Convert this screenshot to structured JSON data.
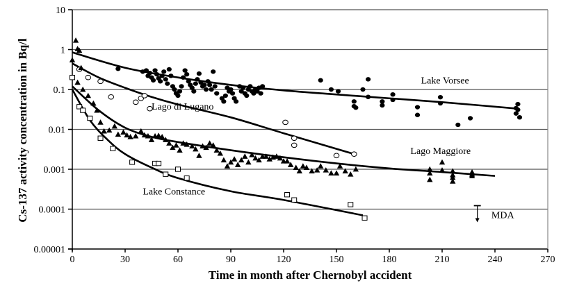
{
  "chart_data": {
    "type": "scatter",
    "title": "",
    "xlabel": "Time in month after Chernobyl accident",
    "ylabel": "Cs-137 activity concentration in Bq/l",
    "xlim": [
      0,
      270
    ],
    "ylim": [
      1e-05,
      10
    ],
    "yscale": "log",
    "grid": "horizontal",
    "x_ticks": [
      "0",
      "30",
      "60",
      "90",
      "120",
      "150",
      "180",
      "210",
      "240",
      "270"
    ],
    "y_ticks": [
      "10",
      "1",
      "0.1",
      "0.01",
      "0.001",
      "0.0001",
      "0.00001"
    ],
    "legend": "none (series labelled inline)",
    "annotations": [
      {
        "text": "Lake Vorsee",
        "x": 198,
        "y": 0.14
      },
      {
        "text": "Lago di Lugano",
        "x": 45,
        "y": 0.031
      },
      {
        "text": "Lago Maggiore",
        "x": 192,
        "y": 0.0024
      },
      {
        "text": "Lake Constance",
        "x": 40,
        "y": 0.00023
      },
      {
        "text": "MDA",
        "x": 238,
        "y": 6e-05
      }
    ],
    "mda_marker": {
      "x": 230,
      "y": 0.0001
    },
    "series": [
      {
        "name": "Lake Vorsee",
        "marker": "filled-circle",
        "points": [
          [
            26,
            0.33
          ],
          [
            40,
            0.28
          ],
          [
            42,
            0.3
          ],
          [
            43,
            0.22
          ],
          [
            44,
            0.26
          ],
          [
            45,
            0.2
          ],
          [
            46,
            0.17
          ],
          [
            47,
            0.3
          ],
          [
            48,
            0.24
          ],
          [
            49,
            0.19
          ],
          [
            50,
            0.16
          ],
          [
            51,
            0.22
          ],
          [
            52,
            0.28
          ],
          [
            53,
            0.18
          ],
          [
            54,
            0.14
          ],
          [
            55,
            0.32
          ],
          [
            56,
            0.22
          ],
          [
            57,
            0.12
          ],
          [
            58,
            0.1
          ],
          [
            59,
            0.08
          ],
          [
            60,
            0.07
          ],
          [
            61,
            0.09
          ],
          [
            62,
            0.12
          ],
          [
            63,
            0.2
          ],
          [
            64,
            0.3
          ],
          [
            65,
            0.24
          ],
          [
            66,
            0.16
          ],
          [
            67,
            0.13
          ],
          [
            68,
            0.11
          ],
          [
            69,
            0.09
          ],
          [
            70,
            0.14
          ],
          [
            71,
            0.18
          ],
          [
            72,
            0.25
          ],
          [
            73,
            0.15
          ],
          [
            74,
            0.12
          ],
          [
            75,
            0.13
          ],
          [
            76,
            0.1
          ],
          [
            77,
            0.16
          ],
          [
            78,
            0.13
          ],
          [
            79,
            0.1
          ],
          [
            80,
            0.28
          ],
          [
            81,
            0.12
          ],
          [
            82,
            0.08
          ],
          [
            85,
            0.06
          ],
          [
            86,
            0.05
          ],
          [
            87,
            0.07
          ],
          [
            88,
            0.11
          ],
          [
            89,
            0.09
          ],
          [
            90,
            0.1
          ],
          [
            91,
            0.08
          ],
          [
            92,
            0.06
          ],
          [
            93,
            0.05
          ],
          [
            95,
            0.12
          ],
          [
            96,
            0.09
          ],
          [
            97,
            0.11
          ],
          [
            98,
            0.08
          ],
          [
            99,
            0.07
          ],
          [
            100,
            0.1
          ],
          [
            101,
            0.12
          ],
          [
            102,
            0.09
          ],
          [
            103,
            0.08
          ],
          [
            104,
            0.1
          ],
          [
            105,
            0.09
          ],
          [
            106,
            0.11
          ],
          [
            107,
            0.08
          ],
          [
            108,
            0.12
          ],
          [
            141,
            0.17
          ],
          [
            147,
            0.1
          ],
          [
            151,
            0.09
          ],
          [
            160,
            0.05
          ],
          [
            160,
            0.038
          ],
          [
            161,
            0.035
          ],
          [
            165,
            0.1
          ],
          [
            168,
            0.18
          ],
          [
            168,
            0.065
          ],
          [
            176,
            0.05
          ],
          [
            176,
            0.04
          ],
          [
            182,
            0.075
          ],
          [
            182,
            0.055
          ],
          [
            196,
            0.036
          ],
          [
            196,
            0.023
          ],
          [
            209,
            0.045
          ],
          [
            209,
            0.064
          ],
          [
            219,
            0.013
          ],
          [
            226,
            0.019
          ],
          [
            253,
            0.043
          ],
          [
            253,
            0.031
          ],
          [
            252,
            0.025
          ],
          [
            254,
            0.02
          ],
          [
            252,
            0.034
          ]
        ],
        "fit": [
          [
            0,
            0.85
          ],
          [
            30,
            0.35
          ],
          [
            60,
            0.2
          ],
          [
            90,
            0.13
          ],
          [
            120,
            0.095
          ],
          [
            150,
            0.075
          ],
          [
            180,
            0.06
          ],
          [
            210,
            0.048
          ],
          [
            253,
            0.033
          ]
        ]
      },
      {
        "name": "Lago di Lugano",
        "marker": "open-circle",
        "points": [
          [
            4,
            0.32
          ],
          [
            9,
            0.2
          ],
          [
            16,
            0.16
          ],
          [
            22,
            0.065
          ],
          [
            36,
            0.048
          ],
          [
            39,
            0.06
          ],
          [
            41,
            0.07
          ],
          [
            44,
            0.033
          ],
          [
            121,
            0.015
          ],
          [
            126,
            0.006
          ],
          [
            126,
            0.004
          ],
          [
            150,
            0.0022
          ],
          [
            160,
            0.0024
          ]
        ],
        "fit": [
          [
            0,
            0.45
          ],
          [
            15,
            0.2
          ],
          [
            30,
            0.11
          ],
          [
            45,
            0.065
          ],
          [
            60,
            0.042
          ],
          [
            90,
            0.02
          ],
          [
            120,
            0.008
          ],
          [
            160,
            0.0024
          ]
        ]
      },
      {
        "name": "Lago Maggiore",
        "marker": "filled-triangle",
        "points": [
          [
            0,
            0.55
          ],
          [
            2,
            1.7
          ],
          [
            3,
            1.05
          ],
          [
            4,
            0.95
          ],
          [
            5,
            0.35
          ],
          [
            3,
            0.15
          ],
          [
            6,
            0.1
          ],
          [
            9,
            0.07
          ],
          [
            12,
            0.045
          ],
          [
            14,
            0.03
          ],
          [
            16,
            0.015
          ],
          [
            18,
            0.009
          ],
          [
            21,
            0.0095
          ],
          [
            24,
            0.012
          ],
          [
            26,
            0.0075
          ],
          [
            29,
            0.0085
          ],
          [
            31,
            0.0072
          ],
          [
            33,
            0.0065
          ],
          [
            36,
            0.0068
          ],
          [
            39,
            0.009
          ],
          [
            41,
            0.0072
          ],
          [
            43,
            0.0068
          ],
          [
            45,
            0.0055
          ],
          [
            47,
            0.0068
          ],
          [
            49,
            0.007
          ],
          [
            51,
            0.0065
          ],
          [
            53,
            0.0055
          ],
          [
            55,
            0.0045
          ],
          [
            57,
            0.0035
          ],
          [
            59,
            0.004
          ],
          [
            61,
            0.003
          ],
          [
            63,
            0.0045
          ],
          [
            65,
            0.0042
          ],
          [
            68,
            0.0038
          ],
          [
            70,
            0.0032
          ],
          [
            72,
            0.0022
          ],
          [
            74,
            0.0038
          ],
          [
            76,
            0.0035
          ],
          [
            78,
            0.0045
          ],
          [
            80,
            0.004
          ],
          [
            82,
            0.003
          ],
          [
            84,
            0.0025
          ],
          [
            86,
            0.0017
          ],
          [
            88,
            0.0012
          ],
          [
            90,
            0.0015
          ],
          [
            92,
            0.0018
          ],
          [
            94,
            0.0013
          ],
          [
            96,
            0.0017
          ],
          [
            98,
            0.0021
          ],
          [
            100,
            0.0015
          ],
          [
            102,
            0.0023
          ],
          [
            104,
            0.0019
          ],
          [
            106,
            0.0017
          ],
          [
            108,
            0.0021
          ],
          [
            110,
            0.0021
          ],
          [
            112,
            0.0018
          ],
          [
            114,
            0.002
          ],
          [
            116,
            0.0021
          ],
          [
            118,
            0.0019
          ],
          [
            120,
            0.0016
          ],
          [
            122,
            0.0016
          ],
          [
            124,
            0.0013
          ],
          [
            127,
            0.0011
          ],
          [
            129,
            0.0009
          ],
          [
            131,
            0.0012
          ],
          [
            133,
            0.0011
          ],
          [
            136,
            0.0009
          ],
          [
            139,
            0.00095
          ],
          [
            141,
            0.0012
          ],
          [
            144,
            0.00095
          ],
          [
            147,
            0.0008
          ],
          [
            150,
            0.0008
          ],
          [
            152,
            0.0012
          ],
          [
            155,
            0.0009
          ],
          [
            158,
            0.00075
          ],
          [
            161,
            0.001
          ],
          [
            203,
            0.001
          ],
          [
            203,
            0.0008
          ],
          [
            203,
            0.00055
          ],
          [
            210,
            0.0015
          ],
          [
            210,
            0.00095
          ],
          [
            216,
            0.0009
          ],
          [
            216,
            0.00072
          ],
          [
            216,
            0.00062
          ],
          [
            216,
            0.0005
          ],
          [
            227,
            0.00085
          ],
          [
            227,
            0.00075
          ],
          [
            227,
            0.00068
          ]
        ],
        "fit": [
          [
            0,
            0.12
          ],
          [
            15,
            0.03
          ],
          [
            30,
            0.011
          ],
          [
            45,
            0.0065
          ],
          [
            60,
            0.0048
          ],
          [
            90,
            0.003
          ],
          [
            120,
            0.002
          ],
          [
            150,
            0.0014
          ],
          [
            180,
            0.00105
          ],
          [
            210,
            0.00085
          ],
          [
            240,
            0.00068
          ]
        ]
      },
      {
        "name": "Lake Constance",
        "marker": "open-square",
        "points": [
          [
            0,
            0.2
          ],
          [
            4,
            0.037
          ],
          [
            6,
            0.03
          ],
          [
            10,
            0.019
          ],
          [
            16,
            0.006
          ],
          [
            23,
            0.0033
          ],
          [
            34,
            0.0015
          ],
          [
            47,
            0.0014
          ],
          [
            49,
            0.0014
          ],
          [
            53,
            0.00075
          ],
          [
            60,
            0.001
          ],
          [
            65,
            0.0006
          ],
          [
            122,
            0.00023
          ],
          [
            126,
            0.00017
          ],
          [
            158,
            0.00013
          ],
          [
            166,
            6e-05
          ]
        ],
        "fit": [
          [
            0,
            0.1
          ],
          [
            10,
            0.017
          ],
          [
            20,
            0.0055
          ],
          [
            30,
            0.0024
          ],
          [
            45,
            0.0011
          ],
          [
            60,
            0.0006
          ],
          [
            90,
            0.00028
          ],
          [
            120,
            0.00017
          ],
          [
            165,
            7e-05
          ]
        ]
      }
    ]
  }
}
